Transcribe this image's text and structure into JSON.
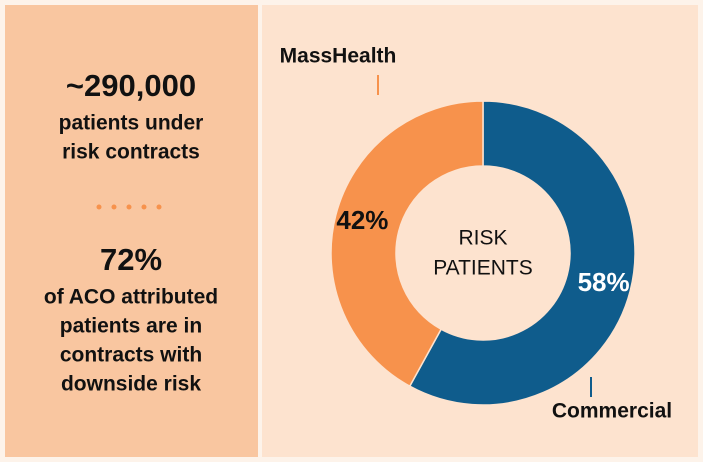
{
  "panel": {
    "stats": [
      {
        "headline": "~290,000",
        "lines": [
          "patients under",
          "risk contracts"
        ]
      },
      {
        "headline": "72%",
        "lines": [
          "of ACO attributed",
          "patients are in",
          "contracts with",
          "downside risk"
        ]
      }
    ]
  },
  "chart_data": {
    "type": "pie",
    "donut": true,
    "center_label": [
      "RISK",
      "PATIENTS"
    ],
    "categories": [
      "Commercial",
      "MassHealth"
    ],
    "values": [
      58,
      42
    ],
    "value_labels": [
      "58%",
      "42%"
    ],
    "colors": [
      "#0f5c8c",
      "#f7924c"
    ]
  }
}
